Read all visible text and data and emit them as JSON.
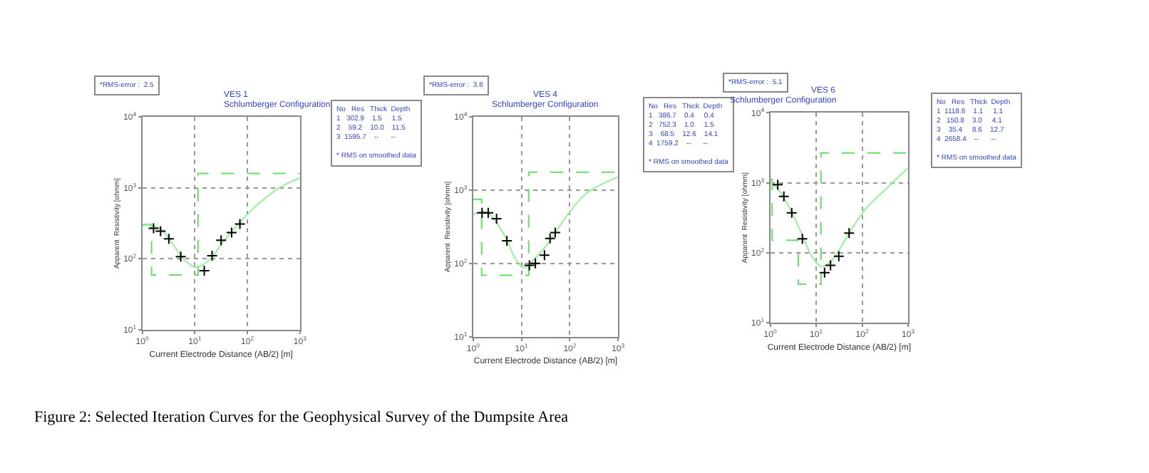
{
  "chart_data": [
    {
      "type": "line",
      "title": "VES 1",
      "subtitle": "Schlumberger Configuration",
      "xlabel": "Current Electrode Distance (AB/2) [m]",
      "ylabel": "Apparent  Resistivity [ohmm]",
      "log": "xy",
      "grid": true,
      "xlim": [
        1,
        1000
      ],
      "ylim": [
        10,
        10000
      ],
      "xticks": [
        {
          "value": 1,
          "label": "10$^{0}$"
        },
        {
          "value": 10,
          "label": "10$^{1}$"
        },
        {
          "value": 100,
          "label": "10$^{2}$"
        },
        {
          "value": 1000,
          "label": "10$^{3}$"
        }
      ],
      "yticks": [
        {
          "value": 10,
          "label": "10$^{1}$"
        },
        {
          "value": 100,
          "label": "10$^{2}$"
        },
        {
          "value": 1000,
          "label": "10$^{3}$"
        },
        {
          "value": 10000,
          "label": "10$^{4}$"
        }
      ],
      "series": [
        {
          "type": "step",
          "line_style": "dashed",
          "color": "#66dd66",
          "x": [
            1,
            1.5,
            11.5,
            1000
          ],
          "values": [
            302.9,
            59.2,
            1595.7,
            1595.7
          ]
        },
        {
          "color": "#99ee99",
          "x": [
            1,
            1.5,
            2.4,
            4.4,
            6.6,
            10.5,
            18.6,
            34.7,
            78,
            178,
            407,
            977
          ],
          "values": [
            295,
            295,
            251,
            138,
            93,
            76,
            95,
            174,
            347,
            631,
            1000,
            1380
          ]
        },
        {
          "type": "scatter",
          "marker": "cross",
          "color": "#000000",
          "x": [
            1.64,
            2.23,
            3.2,
            5.4,
            15.1,
            21.3,
            31.6,
            50,
            72
          ],
          "values": [
            269,
            245,
            191,
            107,
            68,
            110,
            182,
            234,
            309
          ]
        }
      ],
      "annotations": [
        "*RMS-error :  2.5",
        "No   Res   Thick  Depth\n1   302.9    1.5     1.5\n2    59.2    10.0    11.5\n3  1595.7    --      --\n\n* RMS on smoothed data",
        "Figure 2: Selected Iteration Curves for the Geophysical Survey of the Dumpsite Area"
      ]
    },
    {
      "type": "line",
      "title": "VES 4",
      "subtitle": "Schlumberger Configuration",
      "xlabel": "Current Electrode Distance (AB/2) [m]",
      "ylabel": "Apparent  Resistivity [ohmm]",
      "log": "xy",
      "grid": true,
      "xlim": [
        1,
        1000
      ],
      "ylim": [
        10,
        10000
      ],
      "xticks": [
        {
          "value": 1,
          "label": "10$^{0}$"
        },
        {
          "value": 10,
          "label": "10$^{1}$"
        },
        {
          "value": 100,
          "label": "10$^{2}$"
        },
        {
          "value": 1000,
          "label": "10$^{3}$"
        }
      ],
      "yticks": [
        {
          "value": 10,
          "label": "10$^{1}$"
        },
        {
          "value": 100,
          "label": "10$^{2}$"
        },
        {
          "value": 1000,
          "label": "10$^{3}$"
        },
        {
          "value": 10000,
          "label": "10$^{4}$"
        }
      ],
      "series": [
        {
          "type": "step",
          "line_style": "dashed",
          "color": "#66dd66",
          "x": [
            1,
            1.5,
            14.1,
            1000
          ],
          "values": [
            752.3,
            68.5,
            1759.2,
            1759.2
          ]
        },
        {
          "color": "#99ee99",
          "x": [
            1,
            1.46,
            2.04,
            3.2,
            5,
            7,
            11,
            19,
            37,
            91,
            224,
            1000
          ],
          "values": [
            468,
            501,
            490,
            346,
            209,
            126,
            87,
            117,
            195,
            468,
            912,
            1514
          ]
        },
        {
          "type": "scatter",
          "marker": "cross",
          "color": "#000000",
          "x": [
            1.53,
            2.05,
            3.05,
            5.0,
            14.6,
            19.4,
            29.9,
            39,
            50
          ],
          "values": [
            490,
            490,
            408,
            204,
            94,
            100,
            129,
            219,
            263
          ]
        }
      ],
      "annotations": [
        "*RMS-error :  3.8",
        "No   Res   Thick  Depth\n1   386.7    0.4     0.4\n2   752.3    1.0     1.5\n3    68.5    12.6    14.1\n4  1759.2    --      --\n\n* RMS on smoothed data"
      ]
    },
    {
      "type": "line",
      "title": "VES 6",
      "subtitle": "Schlumberger Configuration",
      "xlabel": "Current Electrode Distance (AB/2) [m]",
      "ylabel": "Apparent  Resistivity [ohmm]",
      "log": "xy",
      "grid": true,
      "xlim": [
        1,
        1000
      ],
      "ylim": [
        10,
        10000
      ],
      "xticks": [
        {
          "value": 1,
          "label": "10$^{0}$"
        },
        {
          "value": 10,
          "label": "10$^{1}$"
        },
        {
          "value": 100,
          "label": "10$^{2}$"
        },
        {
          "value": 1000,
          "label": "10$^{3}$"
        }
      ],
      "yticks": [
        {
          "value": 10,
          "label": "10$^{1}$"
        },
        {
          "value": 100,
          "label": "10$^{2}$"
        },
        {
          "value": 1000,
          "label": "10$^{3}$"
        },
        {
          "value": 10000,
          "label": "10$^{4}$"
        }
      ],
      "series": [
        {
          "type": "step",
          "line_style": "dashed",
          "color": "#66dd66",
          "x": [
            1,
            1.1,
            4.1,
            12.7,
            1000
          ],
          "values": [
            1118.8,
            150.8,
            35.4,
            2658.4,
            2658.4
          ]
        },
        {
          "color": "#99ee99",
          "x": [
            1,
            1.53,
            2.75,
            4.9,
            7.9,
            13.3,
            22.7,
            46,
            117,
            380,
            980
          ],
          "values": [
            1020,
            790,
            417,
            182,
            91,
            63,
            80,
            166,
            417,
            890,
            1620
          ]
        },
        {
          "type": "scatter",
          "marker": "cross",
          "color": "#000000",
          "x": [
            1.46,
            1.98,
            2.94,
            5.0,
            15.2,
            20.5,
            31,
            52
          ],
          "values": [
            940,
            636,
            372,
            158,
            52,
            66,
            89,
            191
          ]
        }
      ],
      "annotations": [
        "*RMS-error :  5.1",
        "No   Res   Thick  Depth\n1  1118.8    1.1     1.1\n2   150.8    3.0     4.1\n3    35.4     8.6    12.7\n4  2658.4    --      --\n\n* RMS on smoothed data"
      ]
    }
  ]
}
